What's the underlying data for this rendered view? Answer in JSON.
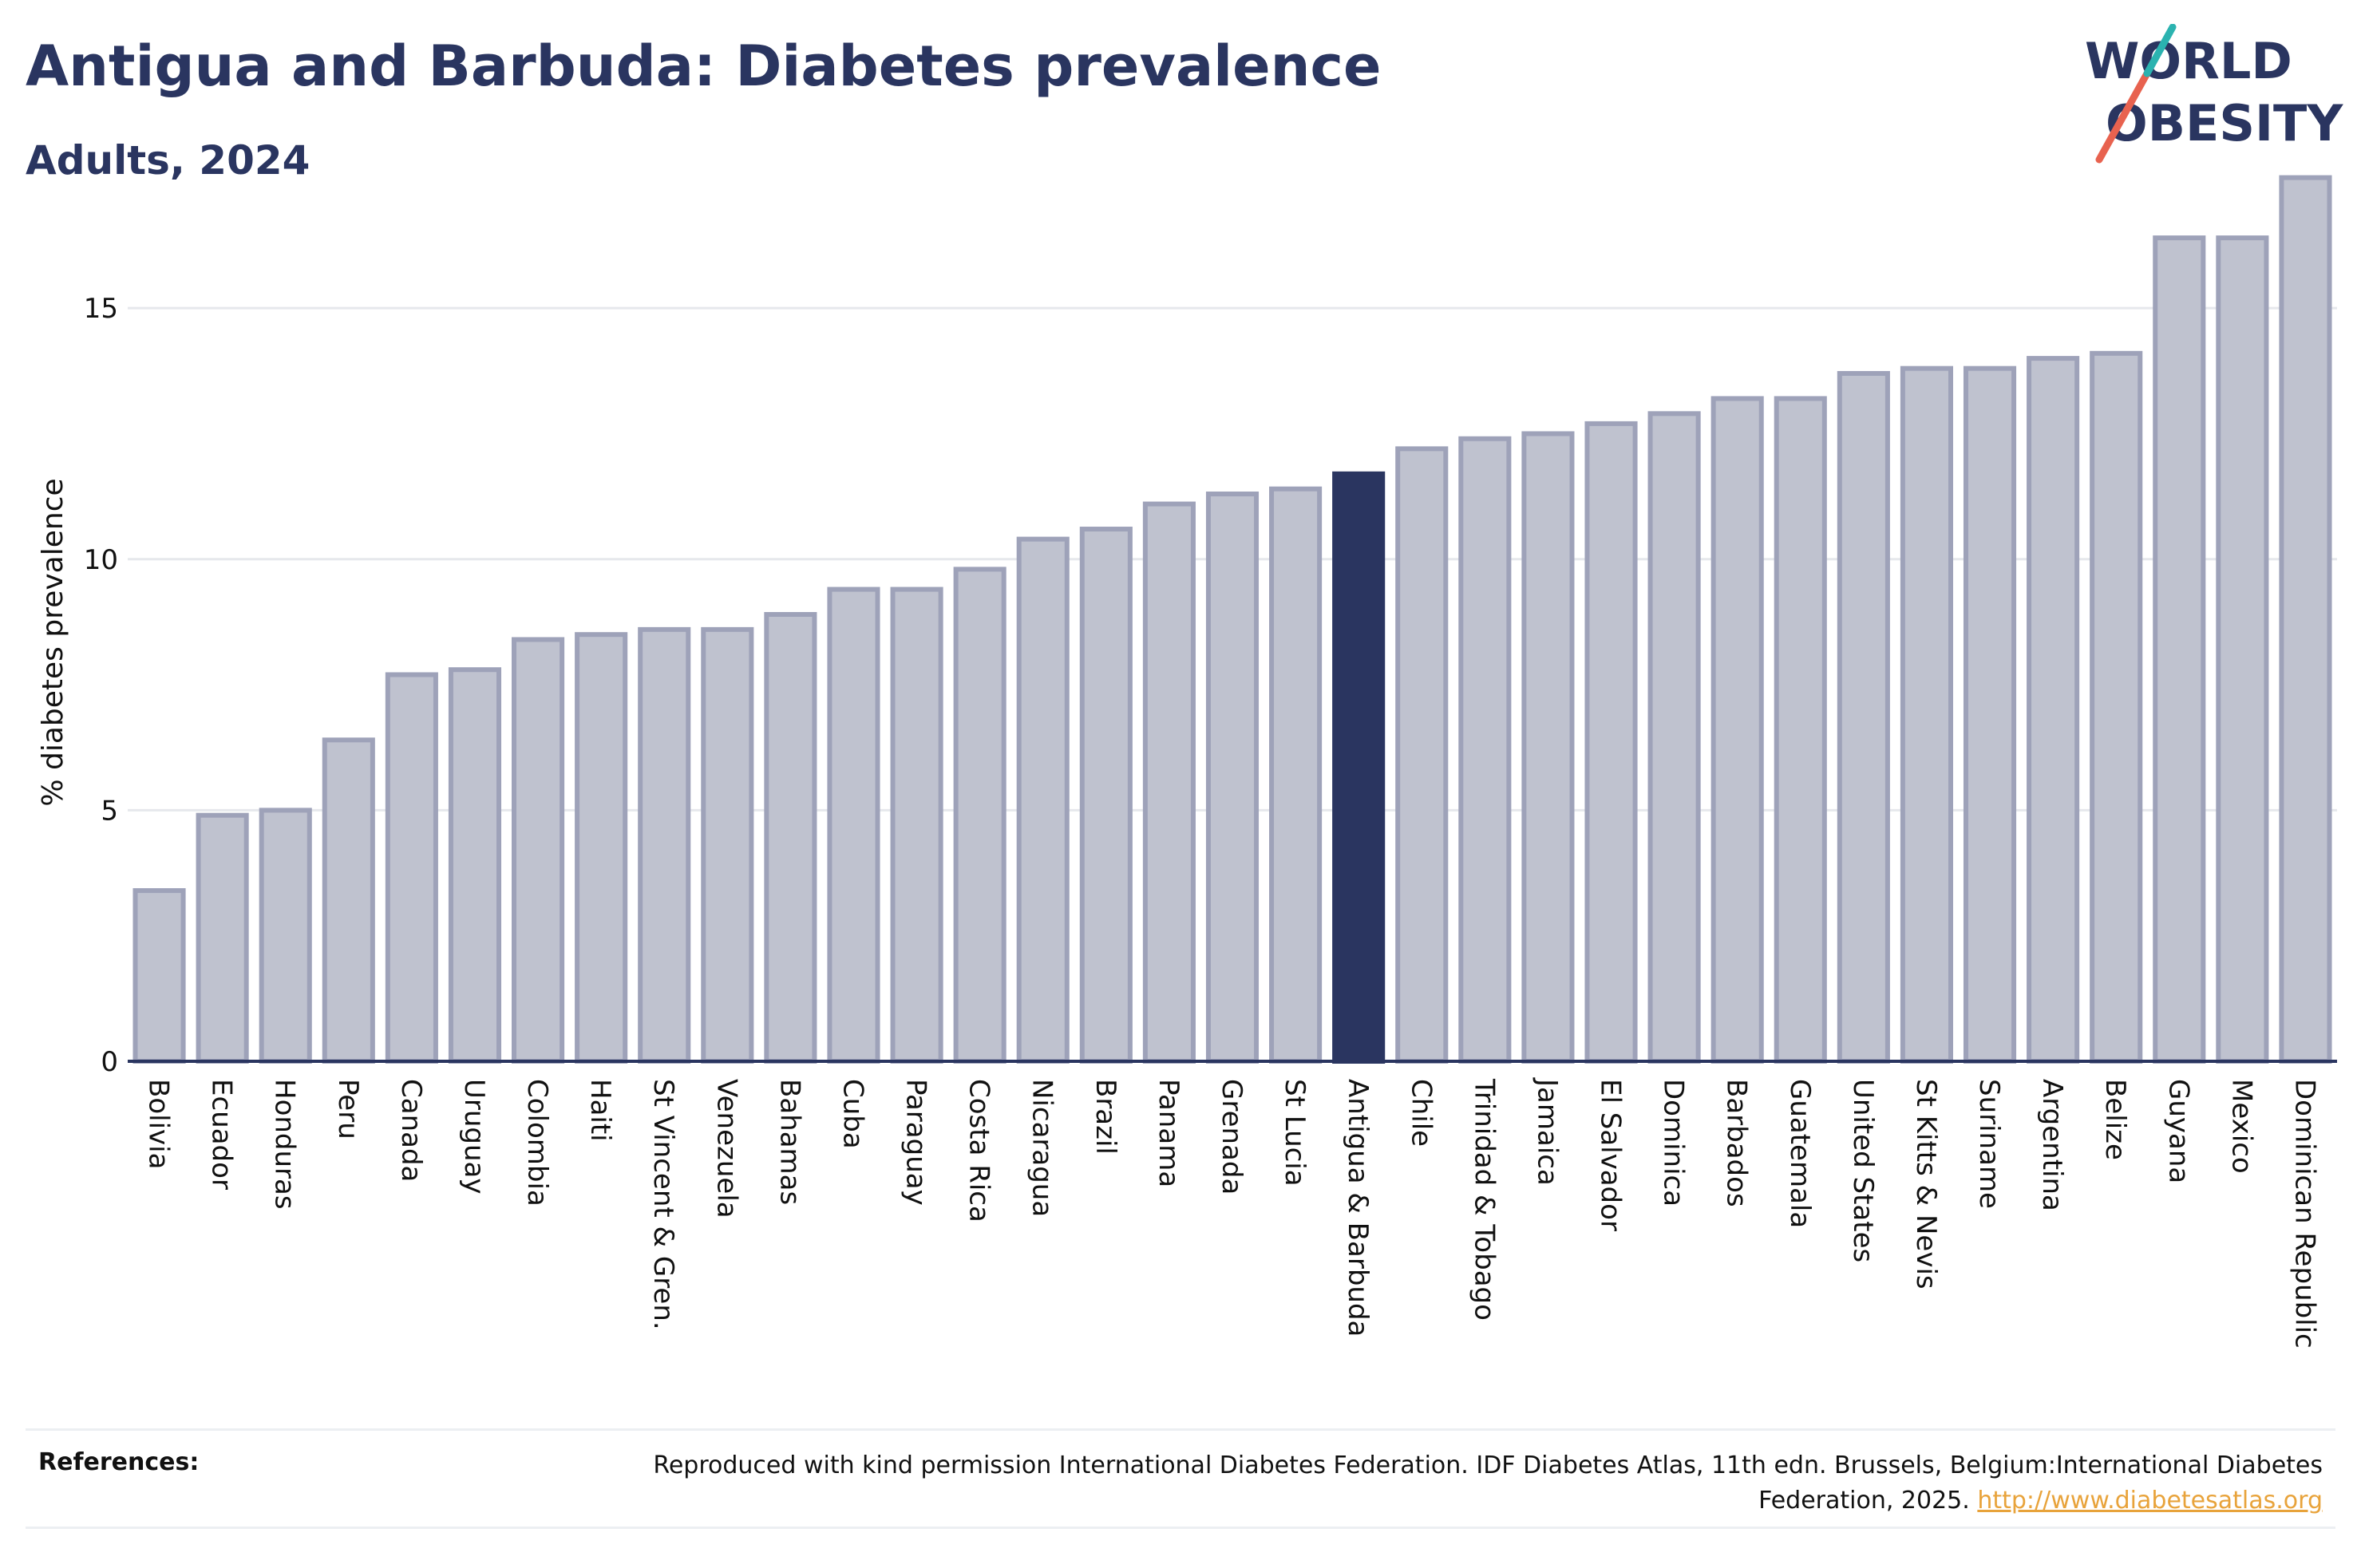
{
  "header": {
    "title": "Antigua and Barbuda: Diabetes prevalence",
    "subtitle": "Adults, 2024"
  },
  "logo": {
    "line1": "WORLD",
    "line2": "OBESITY"
  },
  "references": {
    "label": "References:",
    "text": "Reproduced with kind permission International Diabetes Federation. IDF Diabetes Atlas, 11th edn. Brussels, Belgium:International Diabetes Federation, 2025.",
    "link": "http://www.diabetesatlas.org"
  },
  "colors": {
    "bar_fill": "#bfc2cf",
    "bar_stroke": "#9ea2b9",
    "highlight": "#2a3560",
    "grid": "#e6e8ec",
    "axis": "#2a3560",
    "text": "#111111"
  },
  "chart_data": {
    "type": "bar",
    "title": "Antigua and Barbuda: Diabetes prevalence",
    "subtitle": "Adults, 2024",
    "xlabel": "",
    "ylabel": "% diabetes prevalence",
    "ylim": [
      0,
      17.8
    ],
    "yticks": [
      0,
      5,
      10,
      15
    ],
    "grid": true,
    "highlight": "Antigua & Barbuda",
    "categories": [
      "Bolivia",
      "Ecuador",
      "Honduras",
      "Peru",
      "Canada",
      "Uruguay",
      "Colombia",
      "Haiti",
      "St Vincent & Gren.",
      "Venezuela",
      "Bahamas",
      "Cuba",
      "Paraguay",
      "Costa Rica",
      "Nicaragua",
      "Brazil",
      "Panama",
      "Grenada",
      "St Lucia",
      "Antigua & Barbuda",
      "Chile",
      "Trinidad & Tobago",
      "Jamaica",
      "El Salvador",
      "Dominica",
      "Barbados",
      "Guatemala",
      "United States",
      "St Kitts & Nevis",
      "Suriname",
      "Argentina",
      "Belize",
      "Guyana",
      "Mexico",
      "Dominican Republic"
    ],
    "values": [
      3.4,
      4.9,
      5.0,
      6.4,
      7.7,
      7.8,
      8.4,
      8.5,
      8.6,
      8.6,
      8.9,
      9.4,
      9.4,
      9.8,
      10.4,
      10.6,
      11.1,
      11.3,
      11.4,
      11.7,
      12.2,
      12.4,
      12.5,
      12.7,
      12.9,
      13.2,
      13.2,
      13.7,
      13.8,
      13.8,
      14.0,
      14.1,
      16.4,
      16.4,
      17.6
    ]
  }
}
